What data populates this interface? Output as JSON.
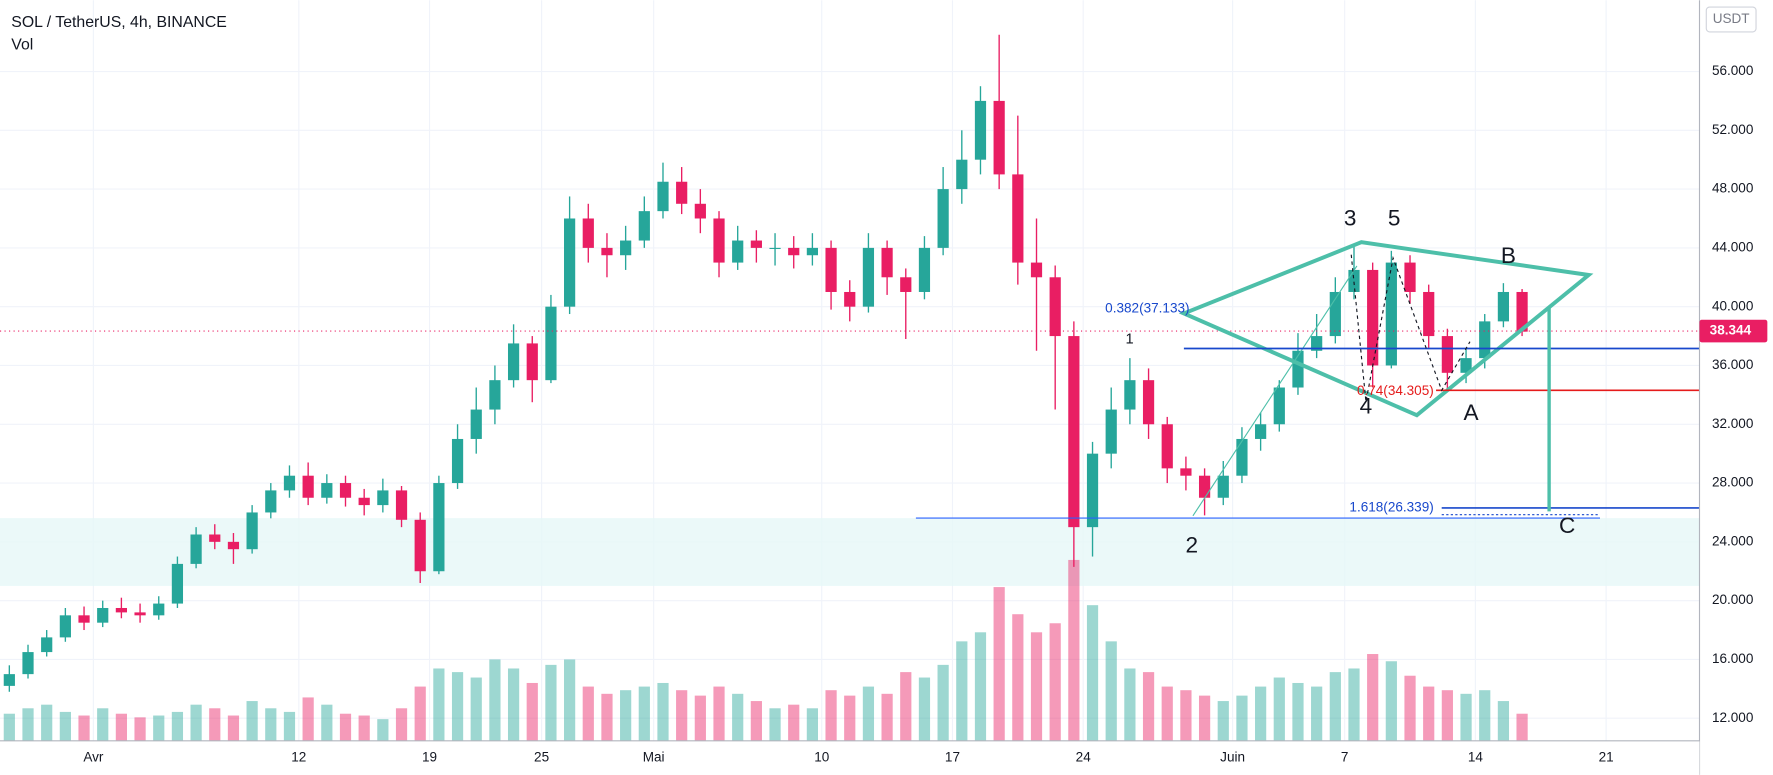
{
  "chart_data": {
    "type": "candlestick",
    "title": "SOL / TetherUS, 4h, BINANCE",
    "volume_label": "Vol",
    "currency": "USDT",
    "last_price": 38.344,
    "up_color": "#26a69a",
    "down_color": "#e91e63",
    "grid": true,
    "x": [
      "03-27",
      "03-28",
      "03-29",
      "03-30",
      "03-31",
      "04-01",
      "04-02",
      "04-03",
      "04-04",
      "04-05",
      "04-06",
      "04-07",
      "04-08",
      "04-09",
      "04-10",
      "04-11",
      "04-12",
      "04-13",
      "04-14",
      "04-15",
      "04-16",
      "04-17",
      "04-18",
      "04-19",
      "04-20",
      "04-21",
      "04-22",
      "04-23",
      "04-24",
      "04-25",
      "04-26",
      "04-27",
      "04-28",
      "04-29",
      "04-30",
      "05-01",
      "05-02",
      "05-03",
      "05-04",
      "05-05",
      "05-06",
      "05-07",
      "05-08",
      "05-09",
      "05-10",
      "05-11",
      "05-12",
      "05-13",
      "05-14",
      "05-15",
      "05-16",
      "05-17",
      "05-18",
      "05-19",
      "05-20",
      "05-21",
      "05-22",
      "05-23",
      "05-24",
      "05-25",
      "05-26",
      "05-27",
      "05-28",
      "05-29",
      "05-30",
      "05-31",
      "06-01",
      "06-02",
      "06-03",
      "06-04",
      "06-05",
      "06-06",
      "06-07",
      "06-08",
      "06-09",
      "06-10",
      "06-11",
      "06-12",
      "06-13",
      "06-14",
      "06-15",
      "06-16"
    ],
    "open": [
      14.2,
      15,
      16.5,
      17.5,
      19,
      18.5,
      19.5,
      19.2,
      19,
      19.8,
      22.5,
      24.5,
      24,
      23.5,
      26,
      27.5,
      28.5,
      27,
      28,
      27,
      26.5,
      27.5,
      25.5,
      22,
      28,
      31,
      33,
      35,
      37.5,
      35,
      40,
      46,
      44,
      43.5,
      44.5,
      46.5,
      48.5,
      47,
      46,
      43,
      44.5,
      44,
      44,
      43.5,
      44,
      41,
      40,
      44,
      42,
      41,
      44,
      48,
      50,
      54,
      49,
      43,
      42,
      38,
      25,
      30,
      33,
      35,
      32,
      29,
      28.5,
      27,
      28.5,
      31,
      32,
      34.5,
      37,
      38,
      41,
      42.5,
      36,
      43,
      41,
      38,
      35.5,
      36.5,
      39,
      41
    ],
    "high": [
      15.6,
      17,
      18,
      19.5,
      19.6,
      20,
      20.2,
      19.8,
      20.3,
      23,
      25,
      25.2,
      24.6,
      26.5,
      28,
      29.2,
      29.4,
      28.6,
      28.5,
      27.6,
      28.3,
      27.8,
      26,
      28.5,
      32,
      34.5,
      36,
      38.8,
      38,
      40.8,
      47.5,
      47,
      45,
      45.5,
      47.5,
      49.8,
      49.5,
      48,
      46.5,
      45.5,
      45.2,
      45,
      44.8,
      45,
      44.5,
      41.8,
      45,
      44.5,
      42.6,
      44.8,
      49.5,
      52,
      55,
      58.5,
      53,
      46,
      42.8,
      39,
      30.8,
      34.5,
      36.5,
      35.8,
      32.5,
      29.8,
      29,
      29.5,
      31.8,
      32.8,
      35,
      38.2,
      39.5,
      42,
      44.2,
      43,
      43.8,
      43.5,
      41.5,
      38.5,
      37.2,
      39.5,
      41.6,
      41.2
    ],
    "low": [
      13.8,
      14.7,
      16.2,
      17.2,
      18,
      18.2,
      18.8,
      18.5,
      18.7,
      19.5,
      22.2,
      23.5,
      22.5,
      23.2,
      25.6,
      27,
      26.5,
      26.6,
      26.4,
      25.8,
      26,
      25,
      21.2,
      21.8,
      27.6,
      30,
      32,
      34.5,
      33.5,
      34.8,
      39.5,
      43,
      42,
      42.5,
      44,
      46,
      46.3,
      45,
      42,
      42.5,
      43,
      42.8,
      42.6,
      42.8,
      39.8,
      39,
      39.6,
      40.8,
      37.8,
      40.5,
      43.5,
      47,
      49,
      48,
      41.5,
      37,
      33,
      22.3,
      23,
      29,
      32,
      31,
      28,
      27.5,
      25.8,
      26.5,
      28,
      30.2,
      31.5,
      34,
      36.5,
      37.5,
      40.5,
      34.5,
      35.8,
      40.2,
      37.2,
      34.4,
      34.8,
      35.8,
      38.6,
      38
    ],
    "close": [
      15,
      16.5,
      17.5,
      19,
      18.5,
      19.5,
      19.2,
      19,
      19.8,
      22.5,
      24.5,
      24,
      23.5,
      26,
      27.5,
      28.5,
      27,
      28,
      27,
      26.5,
      27.5,
      25.5,
      22,
      28,
      31,
      33,
      35,
      37.5,
      35,
      40,
      46,
      44,
      43.5,
      44.5,
      46.5,
      48.5,
      47,
      46,
      43,
      44.5,
      44,
      44,
      43.5,
      44,
      41,
      40,
      44,
      42,
      41,
      44,
      48,
      50,
      54,
      49,
      43,
      42,
      38,
      25,
      30,
      33,
      35,
      32,
      29,
      28.5,
      27,
      28.5,
      31,
      32,
      34.5,
      37,
      38,
      41,
      42.5,
      36,
      43,
      41,
      38,
      35.5,
      36.5,
      39,
      41,
      38.3
    ],
    "volume": [
      15,
      18,
      20,
      16,
      14,
      18,
      15,
      13,
      14,
      16,
      20,
      18,
      14,
      22,
      18,
      16,
      24,
      20,
      15,
      14,
      12,
      18,
      30,
      40,
      38,
      35,
      45,
      40,
      32,
      42,
      45,
      30,
      26,
      28,
      30,
      32,
      28,
      25,
      30,
      26,
      22,
      18,
      20,
      18,
      28,
      25,
      30,
      26,
      38,
      35,
      42,
      55,
      60,
      85,
      70,
      60,
      65,
      100,
      75,
      55,
      40,
      38,
      30,
      28,
      25,
      22,
      25,
      30,
      35,
      32,
      30,
      38,
      40,
      48,
      44,
      36,
      30,
      28,
      26,
      28,
      22,
      15
    ],
    "xlim": [
      "03-27",
      "06-26"
    ],
    "xticks": [
      {
        "value": "04-01",
        "label": "Avr"
      },
      {
        "value": "04-12",
        "label": "12"
      },
      {
        "value": "04-19",
        "label": "19"
      },
      {
        "value": "04-25",
        "label": "25"
      },
      {
        "value": "05-01",
        "label": "Mai"
      },
      {
        "value": "05-10",
        "label": "10"
      },
      {
        "value": "05-17",
        "label": "17"
      },
      {
        "value": "05-24",
        "label": "24"
      },
      {
        "value": "06-01",
        "label": "Juin"
      },
      {
        "value": "06-07",
        "label": "7"
      },
      {
        "value": "06-14",
        "label": "14"
      },
      {
        "value": "06-21",
        "label": "21"
      }
    ],
    "ylim": [
      10.46,
      60.85
    ],
    "yticks": [
      {
        "value": 12,
        "label": "12.000"
      },
      {
        "value": 16,
        "label": "16.000"
      },
      {
        "value": 20,
        "label": "20.000"
      },
      {
        "value": 24,
        "label": "24.000"
      },
      {
        "value": 28,
        "label": "28.000"
      },
      {
        "value": 32,
        "label": "32.000"
      },
      {
        "value": 36,
        "label": "36.000"
      },
      {
        "value": 40,
        "label": "40.000"
      },
      {
        "value": 44,
        "label": "44.000"
      },
      {
        "value": 48,
        "label": "48.000"
      },
      {
        "value": 52,
        "label": "52.000"
      },
      {
        "value": 56,
        "label": "56.000"
      }
    ],
    "annotations": [
      "3",
      "5",
      "B",
      "4",
      "A",
      "2",
      "C",
      "1",
      "0.382(37.133)",
      "0.74(34.305)",
      "1.618(26.339)"
    ]
  }
}
